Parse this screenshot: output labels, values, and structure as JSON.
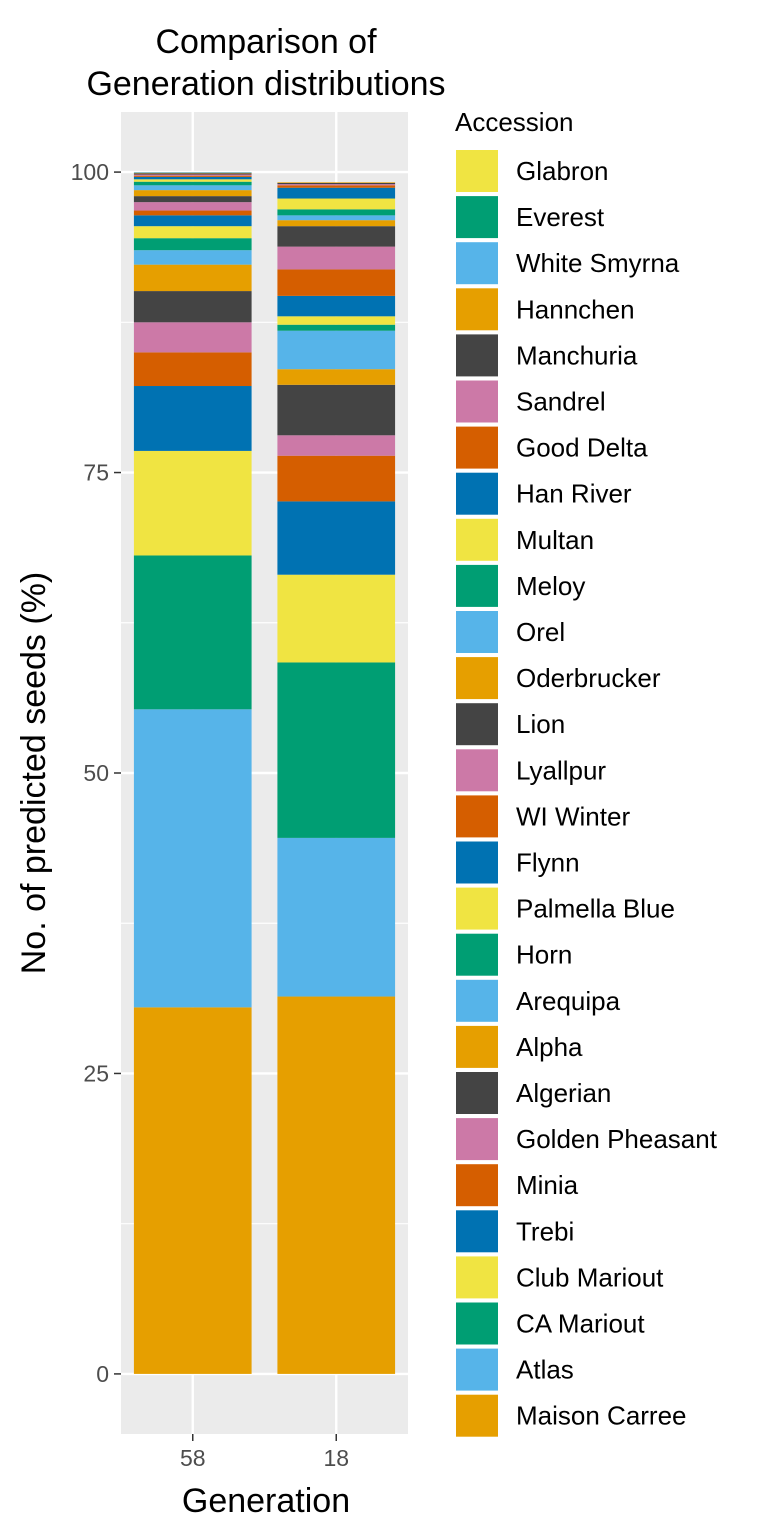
{
  "chart_data": {
    "type": "bar",
    "stacked": true,
    "title": "Comparison of",
    "subtitle": "Generation distributions",
    "xlabel": "Generation",
    "ylabel": "No. of predicted seeds (%)",
    "ylim": [
      -5,
      105
    ],
    "yticks": [
      "0",
      "25",
      "50",
      "75",
      "100"
    ],
    "categories": [
      "58",
      "18"
    ],
    "grid": true,
    "legend": {
      "title": "Accession",
      "placement": "right"
    },
    "series": [
      {
        "name": "Maison Carree",
        "color": "#E69F00",
        "values": [
          30.5,
          31.4
        ]
      },
      {
        "name": "Atlas",
        "color": "#56B4E9",
        "values": [
          24.8,
          13.2
        ]
      },
      {
        "name": "CA Mariout",
        "color": "#009E73",
        "values": [
          12.8,
          14.6
        ]
      },
      {
        "name": "Club Mariout",
        "color": "#F0E442",
        "values": [
          8.7,
          7.3
        ]
      },
      {
        "name": "Trebi",
        "color": "#0072B2",
        "values": [
          5.4,
          6.1
        ]
      },
      {
        "name": "Minia",
        "color": "#D55E00",
        "values": [
          2.8,
          3.8
        ]
      },
      {
        "name": "Golden Pheasant",
        "color": "#CC79A7",
        "values": [
          2.5,
          1.7
        ]
      },
      {
        "name": "Algerian",
        "color": "#444444",
        "values": [
          2.6,
          4.2
        ]
      },
      {
        "name": "Alpha",
        "color": "#E69F00",
        "values": [
          2.2,
          1.3
        ]
      },
      {
        "name": "Arequipa",
        "color": "#56B4E9",
        "values": [
          1.2,
          3.2
        ]
      },
      {
        "name": "Horn",
        "color": "#009E73",
        "values": [
          1.0,
          0.5
        ]
      },
      {
        "name": "Palmella Blue",
        "color": "#F0E442",
        "values": [
          1.0,
          0.7
        ]
      },
      {
        "name": "Flynn",
        "color": "#0072B2",
        "values": [
          0.9,
          1.7
        ]
      },
      {
        "name": "WI Winter",
        "color": "#D55E00",
        "values": [
          0.4,
          2.2
        ]
      },
      {
        "name": "Lyallpur",
        "color": "#CC79A7",
        "values": [
          0.7,
          1.9
        ]
      },
      {
        "name": "Lion",
        "color": "#444444",
        "values": [
          0.5,
          1.7
        ]
      },
      {
        "name": "Oderbrucker",
        "color": "#E69F00",
        "values": [
          0.5,
          0.5
        ]
      },
      {
        "name": "Orel",
        "color": "#56B4E9",
        "values": [
          0.4,
          0.4
        ]
      },
      {
        "name": "Meloy",
        "color": "#009E73",
        "values": [
          0.3,
          0.5
        ]
      },
      {
        "name": "Multan",
        "color": "#F0E442",
        "values": [
          0.2,
          0.9
        ]
      },
      {
        "name": "Han River",
        "color": "#0072B2",
        "values": [
          0.2,
          0.9
        ]
      },
      {
        "name": "Good Delta",
        "color": "#D55E00",
        "values": [
          0.1,
          0.2
        ]
      },
      {
        "name": "Sandrel",
        "color": "#CC79A7",
        "values": [
          0.1,
          0.1
        ]
      },
      {
        "name": "Manchuria",
        "color": "#444444",
        "values": [
          0.1,
          0.1
        ]
      },
      {
        "name": "Hannchen",
        "color": "#E69F00",
        "values": [
          0.05,
          0.05
        ]
      },
      {
        "name": "White Smyrna",
        "color": "#56B4E9",
        "values": [
          0.05,
          0.0
        ]
      },
      {
        "name": "Everest",
        "color": "#009E73",
        "values": [
          0.0,
          0.0
        ]
      },
      {
        "name": "Glabron",
        "color": "#F0E442",
        "values": [
          0.0,
          0.0
        ]
      }
    ]
  }
}
